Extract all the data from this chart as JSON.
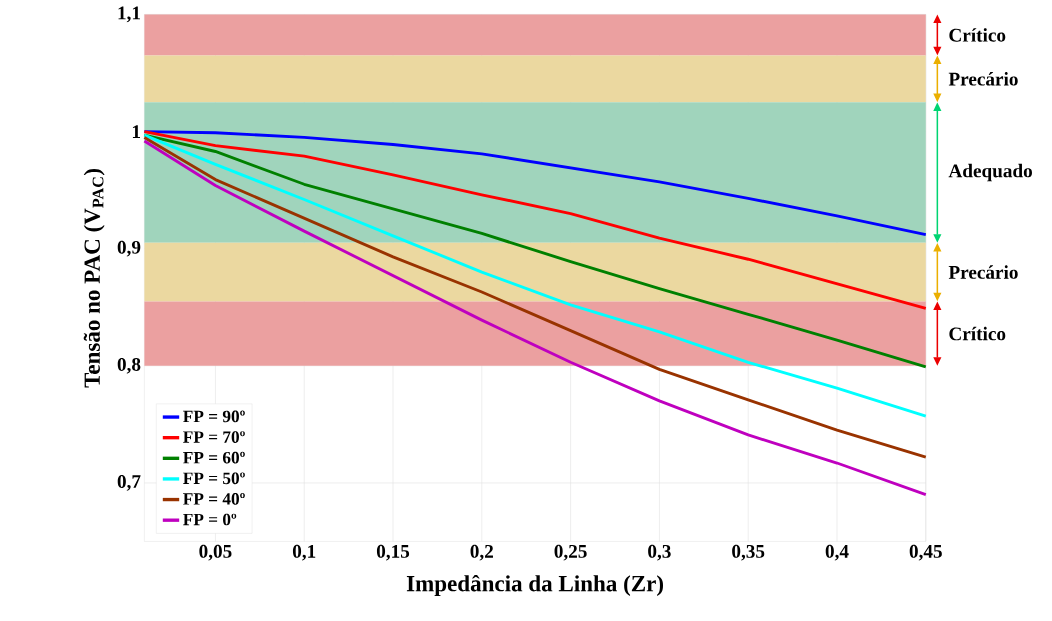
{
  "chart_data": {
    "type": "line",
    "xlabel": "Impedância da Linha (Zr)",
    "ylabel": "Tensão no PAC (V$_{PAC}$)",
    "x": [
      0.01,
      0.05,
      0.1,
      0.15,
      0.2,
      0.25,
      0.3,
      0.35,
      0.4,
      0.45
    ],
    "series": [
      {
        "name": "FP = 90º",
        "color": "#0000ff",
        "values": [
          1.0,
          0.999,
          0.995,
          0.989,
          0.981,
          0.969,
          0.957,
          0.943,
          0.928,
          0.912
        ]
      },
      {
        "name": "FP = 70º",
        "color": "#ff0000",
        "values": [
          1.0,
          0.988,
          0.979,
          0.963,
          0.946,
          0.93,
          0.909,
          0.891,
          0.87,
          0.849
        ]
      },
      {
        "name": "FP = 60º",
        "color": "#008000",
        "values": [
          0.997,
          0.983,
          0.955,
          0.934,
          0.913,
          0.889,
          0.866,
          0.844,
          0.822,
          0.799
        ]
      },
      {
        "name": "FP = 50º",
        "color": "#00ffff",
        "values": [
          0.997,
          0.972,
          0.942,
          0.911,
          0.88,
          0.852,
          0.829,
          0.803,
          0.781,
          0.757
        ]
      },
      {
        "name": "FP = 40º",
        "color": "#993300",
        "values": [
          0.995,
          0.959,
          0.926,
          0.893,
          0.863,
          0.83,
          0.797,
          0.771,
          0.745,
          0.722
        ]
      },
      {
        "name": "FP = 0º",
        "color": "#bf00bf",
        "values": [
          0.992,
          0.954,
          0.915,
          0.877,
          0.839,
          0.803,
          0.77,
          0.741,
          0.717,
          0.69
        ]
      }
    ],
    "xlim": [
      0.01,
      0.45
    ],
    "ylim": [
      0.65,
      1.1
    ],
    "xticks": [
      {
        "value": 0.05,
        "label": "0,05"
      },
      {
        "value": 0.1,
        "label": "0,1"
      },
      {
        "value": 0.15,
        "label": "0,15"
      },
      {
        "value": 0.2,
        "label": "0,2"
      },
      {
        "value": 0.25,
        "label": "0,25"
      },
      {
        "value": 0.3,
        "label": "0,3"
      },
      {
        "value": 0.35,
        "label": "0,35"
      },
      {
        "value": 0.4,
        "label": "0,4"
      },
      {
        "value": 0.45,
        "label": "0,45"
      }
    ],
    "yticks": [
      {
        "value": 0.7,
        "label": "0,7"
      },
      {
        "value": 0.8,
        "label": "0,8"
      },
      {
        "value": 0.9,
        "label": "0,9"
      },
      {
        "value": 1,
        "label": "1"
      },
      {
        "value": 1.1,
        "label": "1,1"
      }
    ],
    "bands": [
      {
        "axis": "y",
        "from": 1.065,
        "to": 1.1,
        "label": "Crítico",
        "color": "#eba0a0"
      },
      {
        "axis": "y",
        "from": 1.025,
        "to": 1.065,
        "label": "Precário",
        "color": "#ebd8a0"
      },
      {
        "axis": "y",
        "from": 0.905,
        "to": 1.025,
        "label": "Adequado",
        "color": "#a0d4bc"
      },
      {
        "axis": "y",
        "from": 0.855,
        "to": 0.905,
        "label": "Precário",
        "color": "#ebd8a0"
      },
      {
        "axis": "y",
        "from": 0.8,
        "to": 0.855,
        "label": "Crítico",
        "color": "#eba0a0"
      }
    ],
    "grid": true,
    "legend": "bottom left",
    "marker": "none",
    "line_style": "solid"
  }
}
